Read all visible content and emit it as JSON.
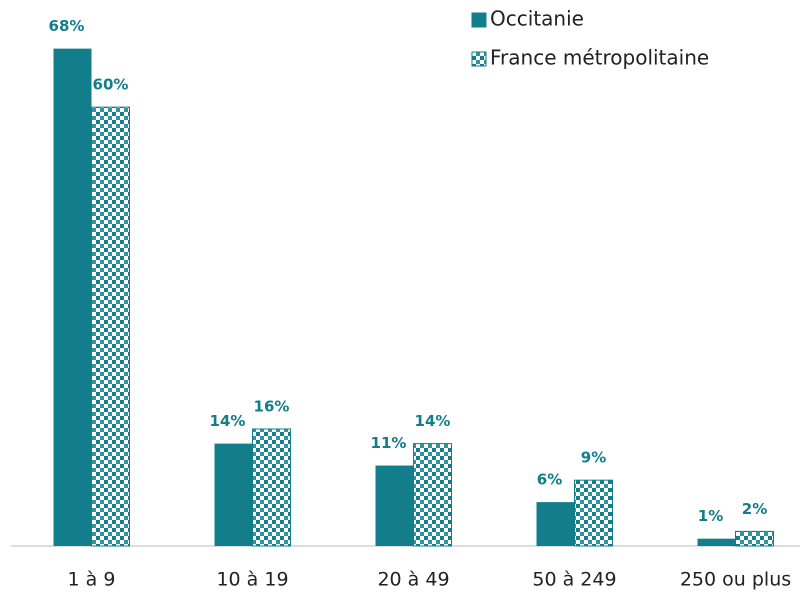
{
  "chart_data": {
    "type": "bar",
    "categories": [
      "1 à 9",
      "10 à 19",
      "20 à 49",
      "50 à 249",
      "250 ou plus"
    ],
    "series": [
      {
        "name": "Occitanie",
        "color": "#127e8b",
        "values": [
          68,
          14,
          11,
          6,
          1
        ],
        "value_labels": [
          "68%",
          "14%",
          "11%",
          "6%",
          "1%"
        ]
      },
      {
        "name": "France métropolitaine",
        "color": "#127e8b",
        "pattern": "dots",
        "values": [
          60,
          16,
          14,
          9,
          2
        ],
        "value_labels": [
          "60%",
          "16%",
          "14%",
          "9%",
          "2%"
        ]
      }
    ],
    "ylim": [
      0,
      70
    ]
  }
}
